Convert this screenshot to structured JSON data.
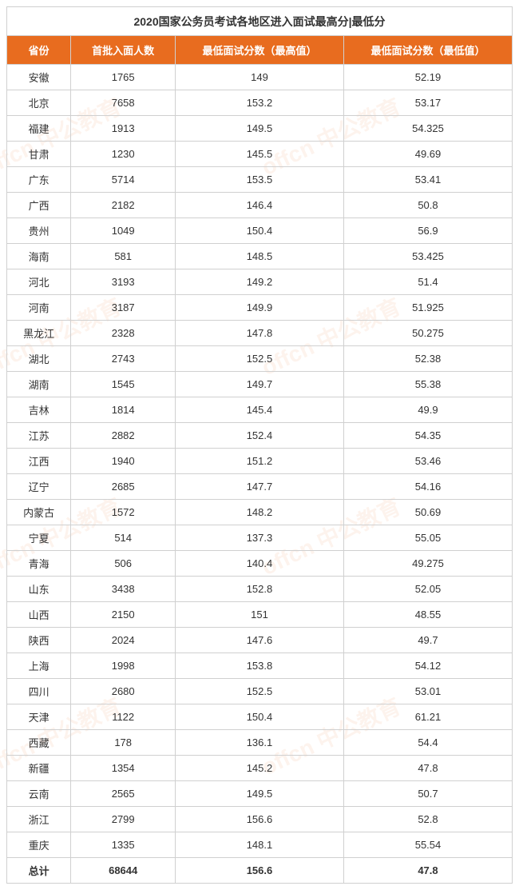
{
  "title": "2020国家公务员考试各地区进入面试最高分|最低分",
  "columns": [
    "省份",
    "首批入面人数",
    "最低面试分数（最高值）",
    "最低面试分数（最低值）"
  ],
  "rows": [
    {
      "province": "安徽",
      "count": "1765",
      "max": "149",
      "min": "52.19"
    },
    {
      "province": "北京",
      "count": "7658",
      "max": "153.2",
      "min": "53.17"
    },
    {
      "province": "福建",
      "count": "1913",
      "max": "149.5",
      "min": "54.325"
    },
    {
      "province": "甘肃",
      "count": "1230",
      "max": "145.5",
      "min": "49.69"
    },
    {
      "province": "广东",
      "count": "5714",
      "max": "153.5",
      "min": "53.41"
    },
    {
      "province": "广西",
      "count": "2182",
      "max": "146.4",
      "min": "50.8"
    },
    {
      "province": "贵州",
      "count": "1049",
      "max": "150.4",
      "min": "56.9"
    },
    {
      "province": "海南",
      "count": "581",
      "max": "148.5",
      "min": "53.425"
    },
    {
      "province": "河北",
      "count": "3193",
      "max": "149.2",
      "min": "51.4"
    },
    {
      "province": "河南",
      "count": "3187",
      "max": "149.9",
      "min": "51.925"
    },
    {
      "province": "黑龙江",
      "count": "2328",
      "max": "147.8",
      "min": "50.275"
    },
    {
      "province": "湖北",
      "count": "2743",
      "max": "152.5",
      "min": "52.38"
    },
    {
      "province": "湖南",
      "count": "1545",
      "max": "149.7",
      "min": "55.38"
    },
    {
      "province": "吉林",
      "count": "1814",
      "max": "145.4",
      "min": "49.9"
    },
    {
      "province": "江苏",
      "count": "2882",
      "max": "152.4",
      "min": "54.35"
    },
    {
      "province": "江西",
      "count": "1940",
      "max": "151.2",
      "min": "53.46"
    },
    {
      "province": "辽宁",
      "count": "2685",
      "max": "147.7",
      "min": "54.16"
    },
    {
      "province": "内蒙古",
      "count": "1572",
      "max": "148.2",
      "min": "50.69"
    },
    {
      "province": "宁夏",
      "count": "514",
      "max": "137.3",
      "min": "55.05"
    },
    {
      "province": "青海",
      "count": "506",
      "max": "140.4",
      "min": "49.275"
    },
    {
      "province": "山东",
      "count": "3438",
      "max": "152.8",
      "min": "52.05"
    },
    {
      "province": "山西",
      "count": "2150",
      "max": "151",
      "min": "48.55"
    },
    {
      "province": "陕西",
      "count": "2024",
      "max": "147.6",
      "min": "49.7"
    },
    {
      "province": "上海",
      "count": "1998",
      "max": "153.8",
      "min": "54.12"
    },
    {
      "province": "四川",
      "count": "2680",
      "max": "152.5",
      "min": "53.01"
    },
    {
      "province": "天津",
      "count": "1122",
      "max": "150.4",
      "min": "61.21"
    },
    {
      "province": "西藏",
      "count": "178",
      "max": "136.1",
      "min": "54.4"
    },
    {
      "province": "新疆",
      "count": "1354",
      "max": "145.2",
      "min": "47.8"
    },
    {
      "province": "云南",
      "count": "2565",
      "max": "149.5",
      "min": "50.7"
    },
    {
      "province": "浙江",
      "count": "2799",
      "max": "156.6",
      "min": "52.8"
    },
    {
      "province": "重庆",
      "count": "1335",
      "max": "148.1",
      "min": "55.54"
    }
  ],
  "total": {
    "province": "总计",
    "count": "68644",
    "max": "156.6",
    "min": "47.8"
  },
  "watermark_text": "offcn 中公教育",
  "colors": {
    "header_bg": "#e86c1f",
    "header_text": "#ffffff",
    "border": "#d0d0d0",
    "text": "#333333",
    "watermark": "rgba(230, 100, 30, 0.08)"
  }
}
